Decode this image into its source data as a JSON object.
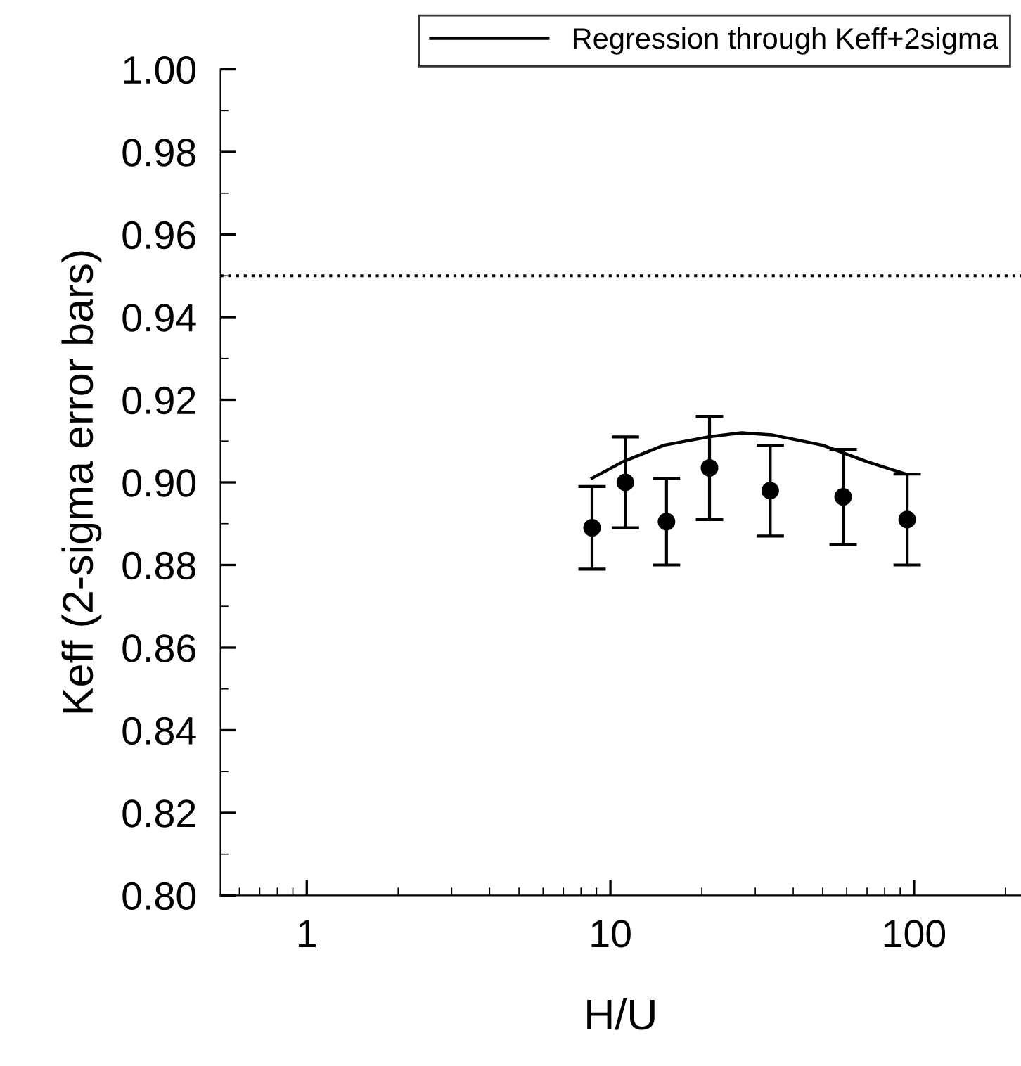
{
  "chart_data": {
    "type": "scatter",
    "xlabel": "H/U",
    "ylabel": "Keff (2-sigma error bars)",
    "log": "x",
    "xlim": [
      0.52,
      225
    ],
    "xticks": [
      1,
      10,
      100
    ],
    "ylim": [
      0.8,
      1.0
    ],
    "yticks": [
      {
        "value": 0.8,
        "label": "0.80"
      },
      {
        "value": 0.82,
        "label": "0.82"
      },
      {
        "value": 0.84,
        "label": "0.84"
      },
      {
        "value": 0.86,
        "label": "0.86"
      },
      {
        "value": 0.88,
        "label": "0.88"
      },
      {
        "value": 0.9,
        "label": "0.90"
      },
      {
        "value": 0.92,
        "label": "0.92"
      },
      {
        "value": 0.94,
        "label": "0.94"
      },
      {
        "value": 0.96,
        "label": "0.96"
      },
      {
        "value": 0.98,
        "label": "0.98"
      },
      {
        "value": 1.0,
        "label": "1.00"
      }
    ],
    "grid": false,
    "legend": "top right",
    "series": [
      {
        "marker": "circle",
        "color": "#000000",
        "x": [
          8.7,
          11.2,
          15.3,
          21.2,
          33.6,
          58.4,
          94.9
        ],
        "values": [
          0.889,
          0.9,
          0.8905,
          0.9035,
          0.898,
          0.8965,
          0.891
        ],
        "errors": [
          0.01,
          0.011,
          0.0105,
          0.0125,
          0.011,
          0.0115,
          0.011
        ]
      },
      {
        "type": "line",
        "marker": "none",
        "name": "Regression through Keff+2sigma",
        "color": "#000000",
        "line_style": "solid",
        "x": [
          8.7,
          11,
          15,
          21,
          27,
          34,
          50,
          70,
          94
        ],
        "values": [
          0.901,
          0.905,
          0.909,
          0.911,
          0.912,
          0.9115,
          0.909,
          0.905,
          0.902
        ]
      }
    ],
    "ref_lines": [
      {
        "axis": "y",
        "value": 0.95,
        "color": "#000000",
        "line_style": "dotted"
      }
    ]
  }
}
